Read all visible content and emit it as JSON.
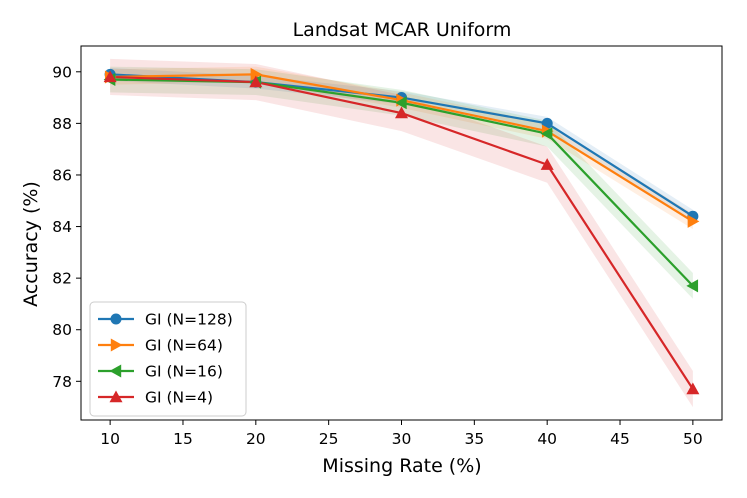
{
  "chart_data": {
    "type": "line",
    "title": "Landsat MCAR Uniform",
    "xlabel": "Missing Rate (%)",
    "ylabel": "Accuracy (%)",
    "x": [
      10,
      20,
      30,
      40,
      50
    ],
    "xlim": [
      8,
      52
    ],
    "ylim": [
      76.5,
      91.0
    ],
    "xticks": [
      10,
      15,
      20,
      25,
      30,
      35,
      40,
      45,
      50
    ],
    "yticks": [
      78,
      80,
      82,
      84,
      86,
      88,
      90
    ],
    "legend_position": "lower-left",
    "grid": false,
    "series": [
      {
        "name": "GI (N=128)",
        "color": "#1f77b4",
        "marker": "circle",
        "values": [
          89.9,
          89.6,
          89.0,
          88.0,
          84.4
        ],
        "band": 0.25
      },
      {
        "name": "GI (N=64)",
        "color": "#ff7f0e",
        "marker": "triangle-right",
        "values": [
          89.8,
          89.9,
          88.9,
          87.7,
          84.2
        ],
        "band": 0.3
      },
      {
        "name": "GI (N=16)",
        "color": "#2ca02c",
        "marker": "triangle-left",
        "values": [
          89.7,
          89.6,
          88.8,
          87.6,
          81.7
        ],
        "band": 0.5
      },
      {
        "name": "GI (N=4)",
        "color": "#d62728",
        "marker": "triangle-up",
        "values": [
          89.8,
          89.6,
          88.4,
          86.4,
          77.7
        ],
        "band": 0.7
      }
    ]
  }
}
